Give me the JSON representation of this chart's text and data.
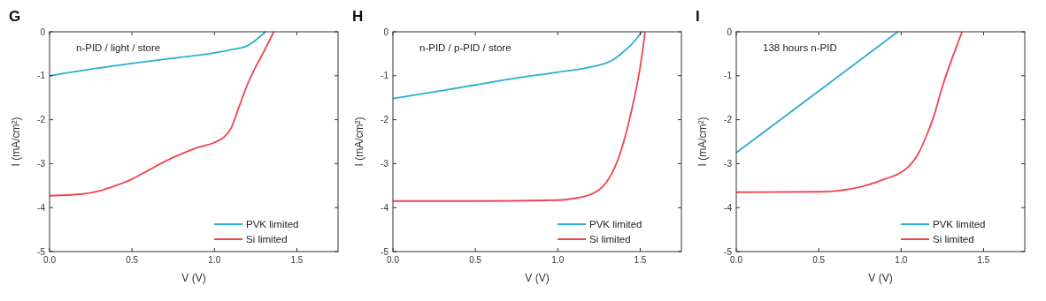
{
  "chart_data": [
    {
      "type": "line",
      "title": "G",
      "xlabel": "V (V)",
      "ylabel": "I (mA/cm²)",
      "annotations": [
        "n-PID / light / store"
      ],
      "xlim": [
        0,
        1.75
      ],
      "ylim": [
        -5,
        0
      ],
      "xticks": [
        {
          "value": 0,
          "label": "0.0"
        },
        {
          "value": 0.5,
          "label": "0.5"
        },
        {
          "value": 1,
          "label": "1.0"
        },
        {
          "value": 1.5,
          "label": "1.5"
        }
      ],
      "yticks": [
        -5,
        -4,
        -3,
        -2,
        -1,
        0
      ],
      "legend": "bottom right",
      "series": [
        {
          "name": "PVK limited",
          "color": "#29b0d0",
          "x": [
            0,
            0.25,
            0.5,
            0.75,
            1.0,
            1.1,
            1.2,
            1.25,
            1.31
          ],
          "values": [
            -1.0,
            -0.85,
            -0.72,
            -0.6,
            -0.48,
            -0.41,
            -0.32,
            -0.19,
            0
          ]
        },
        {
          "name": "Si limited",
          "color": "#f0444f",
          "x": [
            0,
            0.2,
            0.3,
            0.4,
            0.5,
            0.6,
            0.7,
            0.8,
            0.9,
            1.0,
            1.05,
            1.1,
            1.15,
            1.2,
            1.25,
            1.3,
            1.36
          ],
          "values": [
            -3.73,
            -3.69,
            -3.62,
            -3.5,
            -3.35,
            -3.15,
            -2.95,
            -2.78,
            -2.63,
            -2.52,
            -2.42,
            -2.2,
            -1.7,
            -1.2,
            -0.8,
            -0.45,
            0
          ]
        }
      ]
    },
    {
      "type": "line",
      "title": "H",
      "xlabel": "V (V)",
      "ylabel": "I (mA/cm²)",
      "annotations": [
        "n-PID / p-PID / store"
      ],
      "xlim": [
        0,
        1.75
      ],
      "ylim": [
        -5,
        0
      ],
      "xticks": [
        {
          "value": 0,
          "label": "0.0"
        },
        {
          "value": 0.5,
          "label": "0.5"
        },
        {
          "value": 1,
          "label": "1.0"
        },
        {
          "value": 1.5,
          "label": "1.5"
        }
      ],
      "yticks": [
        -5,
        -4,
        -3,
        -2,
        -1,
        0
      ],
      "legend": "bottom right",
      "series": [
        {
          "name": "PVK limited",
          "color": "#29b0d0",
          "x": [
            0,
            0.25,
            0.5,
            0.75,
            1.0,
            1.2,
            1.3,
            1.35,
            1.4,
            1.45,
            1.5,
            1.51
          ],
          "values": [
            -1.52,
            -1.37,
            -1.21,
            -1.05,
            -0.92,
            -0.8,
            -0.7,
            -0.6,
            -0.45,
            -0.28,
            -0.05,
            0
          ]
        },
        {
          "name": "Si limited",
          "color": "#f0444f",
          "x": [
            0,
            0.5,
            1.0,
            1.1,
            1.2,
            1.25,
            1.3,
            1.35,
            1.4,
            1.45,
            1.5,
            1.53
          ],
          "values": [
            -3.85,
            -3.85,
            -3.83,
            -3.79,
            -3.7,
            -3.6,
            -3.4,
            -3.05,
            -2.5,
            -1.75,
            -0.8,
            0
          ]
        }
      ]
    },
    {
      "type": "line",
      "title": "I",
      "xlabel": "V (V)",
      "ylabel": "I (mA/cm²)",
      "annotations": [
        "138 hours n-PID"
      ],
      "xlim": [
        0,
        1.75
      ],
      "ylim": [
        -5,
        0
      ],
      "xticks": [
        {
          "value": 0,
          "label": "0.0"
        },
        {
          "value": 0.5,
          "label": "0.5"
        },
        {
          "value": 1,
          "label": "1.0"
        },
        {
          "value": 1.5,
          "label": "1.5"
        }
      ],
      "yticks": [
        -5,
        -4,
        -3,
        -2,
        -1,
        0
      ],
      "legend": "bottom right",
      "series": [
        {
          "name": "PVK limited",
          "color": "#29b0d0",
          "x": [
            0,
            0.5,
            0.98
          ],
          "values": [
            -2.75,
            -1.35,
            0
          ]
        },
        {
          "name": "Si limited",
          "color": "#f0444f",
          "x": [
            0,
            0.5,
            0.6,
            0.7,
            0.8,
            0.9,
            1.0,
            1.05,
            1.1,
            1.15,
            1.2,
            1.25,
            1.3,
            1.37
          ],
          "values": [
            -3.65,
            -3.64,
            -3.62,
            -3.57,
            -3.48,
            -3.35,
            -3.2,
            -3.05,
            -2.8,
            -2.4,
            -1.9,
            -1.25,
            -0.7,
            0
          ]
        }
      ]
    }
  ]
}
